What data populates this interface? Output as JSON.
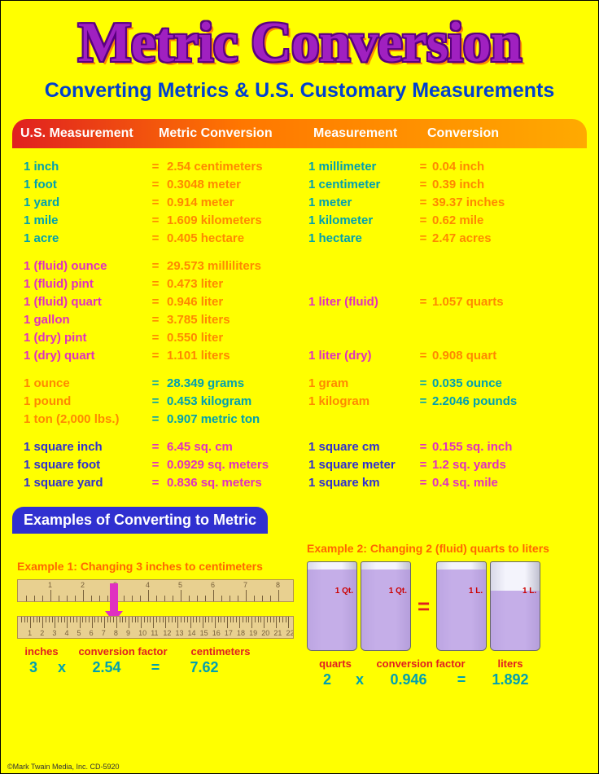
{
  "title": "Metric Conversion",
  "subtitle": "Converting Metrics & U.S. Customary Measurements",
  "headers": [
    "U.S. Measurement",
    "Metric Conversion",
    "Measurement",
    "Conversion"
  ],
  "groups": [
    {
      "color_class": "g0",
      "rows": [
        {
          "lu": "1 inch",
          "lv": "2.54 centimeters",
          "ru": "1 millimeter",
          "rv": "0.04 inch"
        },
        {
          "lu": "1 foot",
          "lv": "0.3048 meter",
          "ru": "1 centimeter",
          "rv": "0.39 inch"
        },
        {
          "lu": "1 yard",
          "lv": "0.914 meter",
          "ru": "1 meter",
          "rv": "39.37 inches"
        },
        {
          "lu": "1 mile",
          "lv": "1.609 kilometers",
          "ru": "1 kilometer",
          "rv": "0.62 mile"
        },
        {
          "lu": "1 acre",
          "lv": "0.405 hectare",
          "ru": "1 hectare",
          "rv": "2.47 acres"
        }
      ]
    },
    {
      "color_class": "g1",
      "rows": [
        {
          "lu": "1 (fluid) ounce",
          "lv": "29.573 milliliters",
          "ru": "",
          "rv": ""
        },
        {
          "lu": "1 (fluid) pint",
          "lv": "0.473 liter",
          "ru": "",
          "rv": ""
        },
        {
          "lu": "1 (fluid) quart",
          "lv": "0.946 liter",
          "ru": "1 liter (fluid)",
          "rv": "1.057 quarts"
        },
        {
          "lu": "1 gallon",
          "lv": "3.785 liters",
          "ru": "",
          "rv": ""
        },
        {
          "lu": "1 (dry) pint",
          "lv": "0.550 liter",
          "ru": "",
          "rv": ""
        },
        {
          "lu": "1 (dry) quart",
          "lv": "1.101 liters",
          "ru": "1 liter (dry)",
          "rv": "0.908 quart"
        }
      ]
    },
    {
      "color_class": "g2",
      "rows": [
        {
          "lu": "1 ounce",
          "lv": "28.349 grams",
          "ru": "1 gram",
          "rv": "0.035 ounce"
        },
        {
          "lu": "1 pound",
          "lv": "0.453 kilogram",
          "ru": "1 kilogram",
          "rv": "2.2046 pounds"
        },
        {
          "lu": "1 ton (2,000 lbs.)",
          "lv": "0.907 metric ton",
          "ru": "",
          "rv": ""
        }
      ]
    },
    {
      "color_class": "g3",
      "rows": [
        {
          "lu": "1 square inch",
          "lv": "6.45 sq. cm",
          "ru": "1 square cm",
          "rv": "0.155 sq. inch"
        },
        {
          "lu": "1 square foot",
          "lv": "0.0929 sq. meters",
          "ru": "1 square meter",
          "rv": "1.2 sq. yards"
        },
        {
          "lu": "1 square yard",
          "lv": "0.836 sq. meters",
          "ru": "1 square km",
          "rv": "0.4 sq. mile"
        }
      ]
    }
  ],
  "examples_title": "Examples of Converting to Metric",
  "example1": {
    "title": "Example 1: Changing 3 inches to centimeters",
    "ruler_inches": [
      1,
      2,
      3,
      4,
      5,
      6,
      7,
      8
    ],
    "ruler_cm": [
      1,
      2,
      3,
      4,
      5,
      6,
      7,
      8,
      9,
      10,
      11,
      12,
      13,
      14,
      15,
      16,
      17,
      18,
      19,
      20,
      21,
      22
    ],
    "labels": [
      "inches",
      "conversion factor",
      "centimeters"
    ],
    "vals": [
      "3",
      "x",
      "2.54",
      "=",
      "7.62"
    ]
  },
  "example2": {
    "title": "Example 2: Changing 2 (fluid) quarts to liters",
    "beaker_label_qt": "1 Qt.",
    "beaker_label_l": "1 L.",
    "plus": "+",
    "eq": "=",
    "labels": [
      "quarts",
      "conversion factor",
      "liters"
    ],
    "vals": [
      "2",
      "x",
      "0.946",
      "=",
      "1.892"
    ]
  },
  "footer": "©Mark Twain Media, Inc.   CD-5920",
  "colors": {
    "background": "#ffff00",
    "title_fill": "#a020c0",
    "title_shadow": "#ff8800",
    "subtitle": "#0040d0",
    "header_grad_from": "#e02020",
    "header_grad_to": "#ffaa00",
    "teal": "#00a0b0",
    "orange": "#ff8800",
    "magenta": "#e030c0",
    "blue": "#3030d0",
    "red": "#e02020",
    "ruler_bg": "#e8d090",
    "beaker_fill": "#b090e0"
  }
}
